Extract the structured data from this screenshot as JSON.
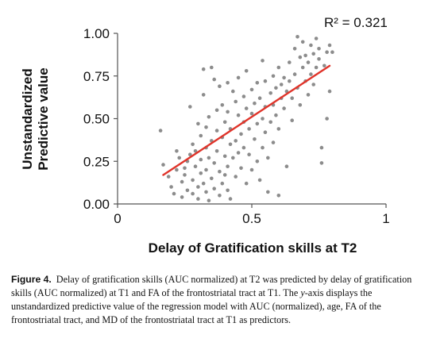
{
  "chart_data": {
    "type": "scatter",
    "title": "",
    "annotation": "R² = 0.321",
    "xlabel": "Delay of Gratification skills at T2",
    "ylabel_lines": [
      "Unstandardized",
      "Predictive value"
    ],
    "xlim": [
      0,
      1
    ],
    "ylim": [
      0,
      1
    ],
    "x_ticks": [
      "0",
      "0.5",
      "1"
    ],
    "y_ticks": [
      "0.00",
      "0.25",
      "0.50",
      "0.75",
      "1.00"
    ],
    "grid": false,
    "colors": {
      "points": "#8c8c8c",
      "trendline": "#e0342a",
      "axes": "#555555"
    },
    "trendline": {
      "x": [
        0.17,
        0.79
      ],
      "y": [
        0.17,
        0.81
      ]
    },
    "points": [
      [
        0.16,
        0.43
      ],
      [
        0.17,
        0.23
      ],
      [
        0.19,
        0.16
      ],
      [
        0.2,
        0.1
      ],
      [
        0.21,
        0.06
      ],
      [
        0.22,
        0.2
      ],
      [
        0.22,
        0.31
      ],
      [
        0.23,
        0.27
      ],
      [
        0.24,
        0.13
      ],
      [
        0.24,
        0.04
      ],
      [
        0.25,
        0.21
      ],
      [
        0.25,
        0.17
      ],
      [
        0.26,
        0.25
      ],
      [
        0.26,
        0.08
      ],
      [
        0.27,
        0.29
      ],
      [
        0.27,
        0.57
      ],
      [
        0.28,
        0.35
      ],
      [
        0.28,
        0.14
      ],
      [
        0.28,
        0.06
      ],
      [
        0.29,
        0.22
      ],
      [
        0.29,
        0.31
      ],
      [
        0.3,
        0.47
      ],
      [
        0.3,
        0.1
      ],
      [
        0.3,
        0.03
      ],
      [
        0.31,
        0.18
      ],
      [
        0.31,
        0.26
      ],
      [
        0.31,
        0.4
      ],
      [
        0.32,
        0.79
      ],
      [
        0.32,
        0.64
      ],
      [
        0.32,
        0.12
      ],
      [
        0.33,
        0.45
      ],
      [
        0.33,
        0.33
      ],
      [
        0.33,
        0.2
      ],
      [
        0.33,
        0.07
      ],
      [
        0.34,
        0.02
      ],
      [
        0.34,
        0.51
      ],
      [
        0.34,
        0.27
      ],
      [
        0.35,
        0.8
      ],
      [
        0.35,
        0.15
      ],
      [
        0.35,
        0.37
      ],
      [
        0.36,
        0.73
      ],
      [
        0.36,
        0.24
      ],
      [
        0.36,
        0.09
      ],
      [
        0.37,
        0.55
      ],
      [
        0.37,
        0.43
      ],
      [
        0.37,
        0.31
      ],
      [
        0.38,
        0.69
      ],
      [
        0.38,
        0.19
      ],
      [
        0.38,
        0.05
      ],
      [
        0.39,
        0.58
      ],
      [
        0.39,
        0.39
      ],
      [
        0.39,
        0.12
      ],
      [
        0.4,
        0.28
      ],
      [
        0.4,
        0.48
      ],
      [
        0.4,
        0.17
      ],
      [
        0.41,
        0.71
      ],
      [
        0.41,
        0.54
      ],
      [
        0.41,
        0.22
      ],
      [
        0.41,
        0.08
      ],
      [
        0.42,
        0.35
      ],
      [
        0.42,
        0.44
      ],
      [
        0.42,
        0.03
      ],
      [
        0.43,
        0.66
      ],
      [
        0.43,
        0.27
      ],
      [
        0.44,
        0.6
      ],
      [
        0.44,
        0.37
      ],
      [
        0.44,
        0.16
      ],
      [
        0.45,
        0.52
      ],
      [
        0.45,
        0.74
      ],
      [
        0.45,
        0.3
      ],
      [
        0.46,
        0.41
      ],
      [
        0.46,
        0.21
      ],
      [
        0.47,
        0.63
      ],
      [
        0.47,
        0.48
      ],
      [
        0.47,
        0.33
      ],
      [
        0.48,
        0.56
      ],
      [
        0.48,
        0.12
      ],
      [
        0.48,
        0.78
      ],
      [
        0.49,
        0.44
      ],
      [
        0.49,
        0.29
      ],
      [
        0.5,
        0.67
      ],
      [
        0.5,
        0.53
      ],
      [
        0.5,
        0.2
      ],
      [
        0.51,
        0.38
      ],
      [
        0.51,
        0.59
      ],
      [
        0.52,
        0.47
      ],
      [
        0.52,
        0.71
      ],
      [
        0.52,
        0.25
      ],
      [
        0.53,
        0.62
      ],
      [
        0.53,
        0.14
      ],
      [
        0.54,
        0.5
      ],
      [
        0.54,
        0.84
      ],
      [
        0.54,
        0.33
      ],
      [
        0.55,
        0.57
      ],
      [
        0.55,
        0.72
      ],
      [
        0.55,
        0.42
      ],
      [
        0.56,
        0.07
      ],
      [
        0.56,
        0.27
      ],
      [
        0.57,
        0.65
      ],
      [
        0.57,
        0.48
      ],
      [
        0.58,
        0.75
      ],
      [
        0.58,
        0.58
      ],
      [
        0.58,
        0.36
      ],
      [
        0.59,
        0.68
      ],
      [
        0.59,
        0.52
      ],
      [
        0.6,
        0.8
      ],
      [
        0.6,
        0.44
      ],
      [
        0.6,
        0.05
      ],
      [
        0.61,
        0.62
      ],
      [
        0.61,
        0.7
      ],
      [
        0.62,
        0.74
      ],
      [
        0.62,
        0.56
      ],
      [
        0.63,
        0.66
      ],
      [
        0.63,
        0.22
      ],
      [
        0.64,
        0.72
      ],
      [
        0.64,
        0.83
      ],
      [
        0.65,
        0.62
      ],
      [
        0.65,
        0.49
      ],
      [
        0.66,
        0.76
      ],
      [
        0.66,
        0.91
      ],
      [
        0.67,
        0.98
      ],
      [
        0.67,
        0.68
      ],
      [
        0.68,
        0.86
      ],
      [
        0.68,
        0.58
      ],
      [
        0.69,
        0.8
      ],
      [
        0.69,
        0.95
      ],
      [
        0.7,
        0.72
      ],
      [
        0.7,
        0.87
      ],
      [
        0.71,
        0.64
      ],
      [
        0.71,
        0.83
      ],
      [
        0.72,
        0.93
      ],
      [
        0.72,
        0.76
      ],
      [
        0.73,
        0.7
      ],
      [
        0.73,
        0.88
      ],
      [
        0.74,
        0.97
      ],
      [
        0.74,
        0.8
      ],
      [
        0.75,
        0.85
      ],
      [
        0.75,
        0.91
      ],
      [
        0.76,
        0.33
      ],
      [
        0.76,
        0.24
      ],
      [
        0.77,
        0.81
      ],
      [
        0.78,
        0.89
      ],
      [
        0.78,
        0.5
      ],
      [
        0.79,
        0.93
      ],
      [
        0.79,
        0.66
      ],
      [
        0.8,
        0.89
      ]
    ]
  },
  "caption": {
    "label": "Figure 4.",
    "text_before_italic": "Delay of gratification skills (AUC normalized) at T2 was predicted by delay of gratification skills (AUC normalized) at T1 and FA of the frontostriatal tract at T1. The ",
    "italic": "y",
    "text_after_italic": "-axis displays the unstandardized predictive value of the regression model with AUC (normalized), age, FA of the frontostriatal tract, and MD of the frontostriatal tract at T1 as predictors."
  }
}
